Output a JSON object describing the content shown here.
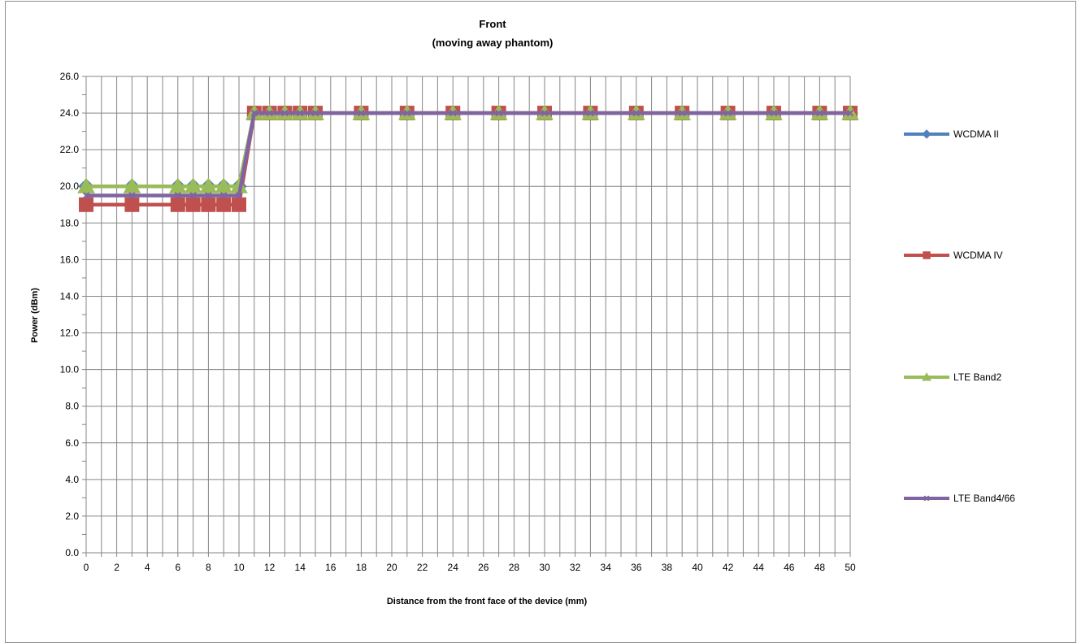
{
  "chart_data": {
    "type": "line",
    "title": "Front",
    "subtitle": "(moving away phantom)",
    "xlabel": "Distance from the front face of the device (mm)",
    "ylabel": "Power (dBm)",
    "xlim": [
      0,
      50
    ],
    "ylim": [
      0,
      26
    ],
    "x_ticks": [
      "0",
      "2",
      "4",
      "6",
      "8",
      "10",
      "12",
      "14",
      "16",
      "18",
      "20",
      "22",
      "24",
      "26",
      "28",
      "30",
      "32",
      "34",
      "36",
      "38",
      "40",
      "42",
      "44",
      "46",
      "48",
      "50"
    ],
    "y_ticks": [
      "0.0",
      "2.0",
      "4.0",
      "6.0",
      "8.0",
      "10.0",
      "12.0",
      "14.0",
      "16.0",
      "18.0",
      "20.0",
      "22.0",
      "24.0",
      "26.0"
    ],
    "grid": true,
    "legend_position": "right",
    "x": [
      0,
      3,
      6,
      7,
      8,
      9,
      10,
      11,
      12,
      13,
      14,
      15,
      18,
      21,
      24,
      27,
      30,
      33,
      36,
      39,
      42,
      45,
      48,
      50
    ],
    "series": [
      {
        "name": "WCDMA II",
        "color": "#4f81bd",
        "marker": "diamond",
        "values": [
          20,
          20,
          20,
          20,
          20,
          20,
          20,
          24,
          24,
          24,
          24,
          24,
          24,
          24,
          24,
          24,
          24,
          24,
          24,
          24,
          24,
          24,
          24,
          24
        ]
      },
      {
        "name": "WCDMA IV",
        "color": "#c0504d",
        "marker": "square",
        "values": [
          19,
          19,
          19,
          19,
          19,
          19,
          19,
          24,
          24,
          24,
          24,
          24,
          24,
          24,
          24,
          24,
          24,
          24,
          24,
          24,
          24,
          24,
          24,
          24
        ]
      },
      {
        "name": "LTE Band2",
        "color": "#9bbb59",
        "marker": "triangle",
        "values": [
          20,
          20,
          20,
          20,
          20,
          20,
          20,
          24,
          24,
          24,
          24,
          24,
          24,
          24,
          24,
          24,
          24,
          24,
          24,
          24,
          24,
          24,
          24,
          24
        ]
      },
      {
        "name": "LTE Band4/66",
        "color": "#8064a2",
        "marker": "x",
        "values": [
          19.5,
          19.5,
          19.5,
          19.5,
          19.5,
          19.5,
          19.5,
          24,
          24,
          24,
          24,
          24,
          24,
          24,
          24,
          24,
          24,
          24,
          24,
          24,
          24,
          24,
          24,
          24
        ]
      }
    ]
  }
}
